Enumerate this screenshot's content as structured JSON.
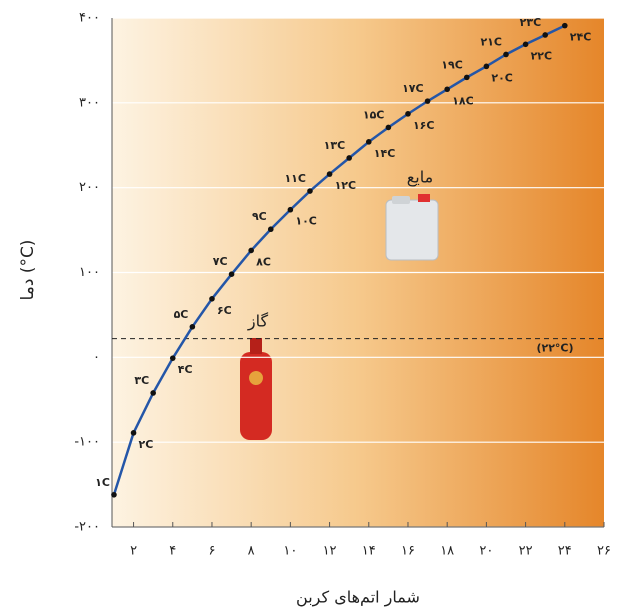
{
  "chart_data": {
    "type": "line",
    "y_label": "دما (°C)",
    "x_label": "شمار اتم‌های کربن",
    "x": [
      1,
      2,
      3,
      4,
      5,
      6,
      7,
      8,
      9,
      10,
      11,
      12,
      13,
      14,
      15,
      16,
      17,
      18,
      19,
      20,
      21,
      22,
      23,
      24
    ],
    "series": [
      {
        "color": "#2456a8",
        "values": [
          -162,
          -89,
          -42,
          -1,
          36,
          69,
          98,
          126,
          151,
          174,
          196,
          216,
          235,
          254,
          271,
          287,
          302,
          316,
          330,
          343,
          357,
          369,
          380,
          391
        ],
        "point_labels": [
          "۱C",
          "۲C",
          "۳C",
          "۴C",
          "۵C",
          "۶C",
          "۷C",
          "۸C",
          "۹C",
          "۱۰C",
          "۱۱C",
          "۱۲C",
          "۱۳C",
          "۱۴C",
          "۱۵C",
          "۱۶C",
          "۱۷C",
          "۱۸C",
          "۱۹C",
          "۲۰C",
          "۲۱C",
          "۲۲C",
          "۲۳C",
          "۲۴C"
        ]
      }
    ],
    "xlim": [
      0.9,
      26
    ],
    "ylim": [
      -200,
      400
    ],
    "xticks": [
      {
        "value": 2,
        "label": "۲"
      },
      {
        "value": 4,
        "label": "۴"
      },
      {
        "value": 6,
        "label": "۶"
      },
      {
        "value": 8,
        "label": "۸"
      },
      {
        "value": 10,
        "label": "۱۰"
      },
      {
        "value": 12,
        "label": "۱۲"
      },
      {
        "value": 14,
        "label": "۱۴"
      },
      {
        "value": 16,
        "label": "۱۶"
      },
      {
        "value": 18,
        "label": "۱۸"
      },
      {
        "value": 20,
        "label": "۲۰"
      },
      {
        "value": 22,
        "label": "۲۲"
      },
      {
        "value": 24,
        "label": "۲۴"
      },
      {
        "value": 26,
        "label": "۲۶"
      }
    ],
    "yticks": [
      {
        "value": -200,
        "label": "-۲۰۰"
      },
      {
        "value": -100,
        "label": "-۱۰۰"
      },
      {
        "value": 0,
        "label": "۰"
      },
      {
        "value": 100,
        "label": "۱۰۰"
      },
      {
        "value": 200,
        "label": "۲۰۰"
      },
      {
        "value": 300,
        "label": "۳۰۰"
      },
      {
        "value": 400,
        "label": "۴۰۰"
      }
    ],
    "grid": true,
    "reference_line": {
      "value": 22,
      "label": "(۲۲°C)"
    },
    "annotations": [
      {
        "text": "مایع"
      },
      {
        "text": "گاز"
      }
    ]
  }
}
